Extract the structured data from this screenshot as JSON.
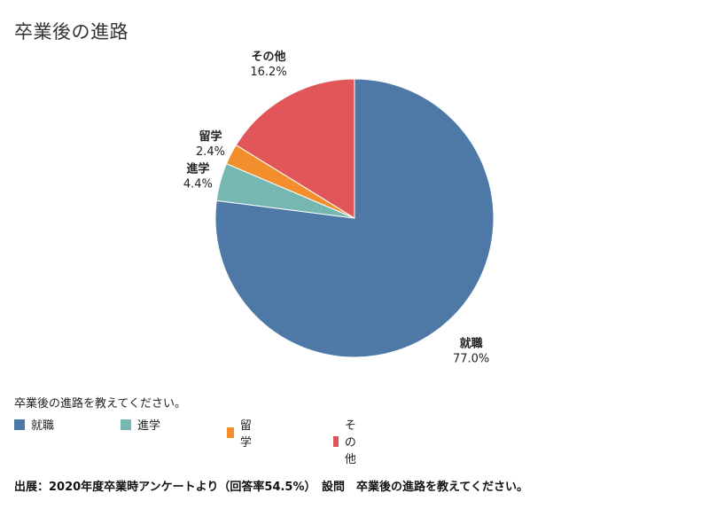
{
  "chart_data": {
    "type": "pie",
    "title": "卒業後の進路",
    "categories": [
      "就職",
      "進学",
      "留学",
      "その他"
    ],
    "values": [
      77.0,
      4.4,
      2.4,
      16.2
    ],
    "value_labels": [
      "77.0%",
      "4.4%",
      "2.4%",
      "16.2%"
    ],
    "colors": [
      "#4E79A7",
      "#76B7B2",
      "#F28E2B",
      "#E15759"
    ],
    "legend_title": "卒業後の進路を教えてください。",
    "legend_position": "bottom-left"
  },
  "source_note": "出展：2020年度卒業時アンケートより（回答率54.5%）　設問　卒業後の進路を教えてください。"
}
